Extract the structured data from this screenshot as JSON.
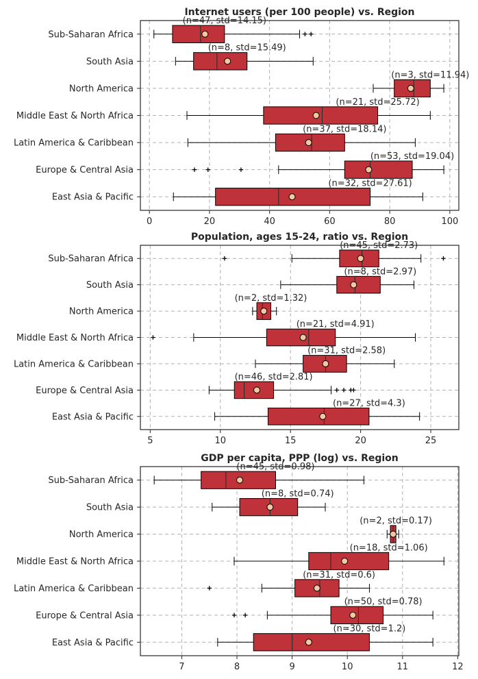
{
  "chart_data": [
    {
      "type": "box",
      "orientation": "horizontal",
      "title": "Internet users (per 100 people) vs. Region",
      "xlim": [
        -3,
        103
      ],
      "xticks": [
        0,
        20,
        40,
        60,
        80,
        100
      ],
      "tick_labels": [
        "0",
        "20",
        "40",
        "60",
        "80",
        "100"
      ],
      "grid": true,
      "colors": {
        "box": "#c0323a",
        "mean_marker": "#f2c8a0",
        "edge": "#000000",
        "grid": "#b0b0b0"
      },
      "categories": [
        "Sub-Saharan Africa",
        "South Asia",
        "North America",
        "Middle East & North Africa",
        "Latin America & Caribbean",
        "Europe & Central Asia",
        "East Asia & Pacific"
      ],
      "boxes": [
        {
          "category": "Sub-Saharan Africa",
          "whisker_low": 1.5,
          "q1": 7.7,
          "median": 17.0,
          "q3": 25.0,
          "whisker_high": 50.0,
          "mean": 18.5,
          "outliers": [
            51.8,
            53.8
          ],
          "annotation": "(n=47, std=14.15)"
        },
        {
          "category": "South Asia",
          "whisker_low": 8.7,
          "q1": 14.7,
          "median": 22.5,
          "q3": 32.5,
          "whisker_high": 54.5,
          "mean": 26.0,
          "outliers": [],
          "annotation": "(n=8, std=15.49)"
        },
        {
          "category": "North America",
          "whisker_low": 74.5,
          "q1": 81.5,
          "median": 88.0,
          "q3": 93.5,
          "whisker_high": 98.0,
          "mean": 87.0,
          "outliers": [],
          "annotation": "(n=3, std=11.94)"
        },
        {
          "category": "Middle East & North Africa",
          "whisker_low": 12.5,
          "q1": 38.0,
          "median": 57.5,
          "q3": 76.0,
          "whisker_high": 93.5,
          "mean": 55.5,
          "outliers": [],
          "annotation": "(n=21, std=25.72)"
        },
        {
          "category": "Latin America & Caribbean",
          "whisker_low": 12.8,
          "q1": 42.0,
          "median": 54.0,
          "q3": 65.0,
          "whisker_high": 88.5,
          "mean": 53.0,
          "outliers": [],
          "annotation": "(n=37, std=18.14)"
        },
        {
          "category": "Europe & Central Asia",
          "whisker_low": 43.0,
          "q1": 65.0,
          "median": 73.5,
          "q3": 87.5,
          "whisker_high": 98.0,
          "mean": 73.0,
          "outliers": [
            15.0,
            19.5,
            30.5
          ],
          "annotation": "(n=53, std=19.04)"
        },
        {
          "category": "East Asia & Pacific",
          "whisker_low": 8.0,
          "q1": 22.0,
          "median": 43.0,
          "q3": 73.5,
          "whisker_high": 91.0,
          "mean": 47.5,
          "outliers": [],
          "annotation": "(n=32, std=27.61)"
        }
      ]
    },
    {
      "type": "box",
      "orientation": "horizontal",
      "title": "Population, ages 15-24, ratio vs. Region",
      "xlim": [
        4.3,
        27
      ],
      "xticks": [
        5,
        10,
        15,
        20,
        25
      ],
      "tick_labels": [
        "5",
        "10",
        "15",
        "20",
        "25"
      ],
      "grid": true,
      "colors": {
        "box": "#c0323a",
        "mean_marker": "#f2c8a0",
        "edge": "#000000",
        "grid": "#b0b0b0"
      },
      "categories": [
        "Sub-Saharan Africa",
        "South Asia",
        "North America",
        "Middle East & North Africa",
        "Latin America & Caribbean",
        "Europe & Central Asia",
        "East Asia & Pacific"
      ],
      "boxes": [
        {
          "category": "Sub-Saharan Africa",
          "whisker_low": 15.1,
          "q1": 18.5,
          "median": 20.1,
          "q3": 21.3,
          "whisker_high": 24.3,
          "mean": 20.0,
          "outliers": [
            10.3,
            25.9
          ],
          "annotation": "(n=45, std=2.73)"
        },
        {
          "category": "South Asia",
          "whisker_low": 14.3,
          "q1": 18.3,
          "median": 19.6,
          "q3": 21.4,
          "whisker_high": 23.8,
          "mean": 19.5,
          "outliers": [],
          "annotation": "(n=8, std=2.97)"
        },
        {
          "category": "North America",
          "whisker_low": 12.3,
          "q1": 12.6,
          "median": 13.0,
          "q3": 13.6,
          "whisker_high": 14.0,
          "mean": 13.1,
          "outliers": [],
          "annotation": "(n=2, std=1.32)"
        },
        {
          "category": "Middle East & North Africa",
          "whisker_low": 8.1,
          "q1": 13.3,
          "median": 16.3,
          "q3": 18.2,
          "whisker_high": 23.9,
          "mean": 15.9,
          "outliers": [
            5.2
          ],
          "annotation": "(n=21, std=4.91)"
        },
        {
          "category": "Latin America & Caribbean",
          "whisker_low": 12.5,
          "q1": 15.9,
          "median": 17.5,
          "q3": 19.0,
          "whisker_high": 22.4,
          "mean": 17.5,
          "outliers": [],
          "annotation": "(n=31, std=2.58)"
        },
        {
          "category": "Europe & Central Asia",
          "whisker_low": 9.2,
          "q1": 11.0,
          "median": 11.7,
          "q3": 13.8,
          "whisker_high": 17.9,
          "mean": 12.6,
          "outliers": [
            18.3,
            18.8,
            19.3,
            19.5
          ],
          "annotation": "(n=46, std=2.81)"
        },
        {
          "category": "East Asia & Pacific",
          "whisker_low": 9.6,
          "q1": 13.4,
          "median": 17.4,
          "q3": 20.6,
          "whisker_high": 24.2,
          "mean": 17.3,
          "outliers": [],
          "annotation": "(n=27, std=4.3)"
        }
      ]
    },
    {
      "type": "box",
      "orientation": "horizontal",
      "title": "GDP per capita, PPP (log) vs. Region",
      "xlim": [
        6.25,
        12.02
      ],
      "xticks": [
        7,
        8,
        9,
        10,
        11,
        12
      ],
      "tick_labels": [
        "7",
        "8",
        "9",
        "10",
        "11",
        "12"
      ],
      "grid": true,
      "colors": {
        "box": "#c0323a",
        "mean_marker": "#f2c8a0",
        "edge": "#000000",
        "grid": "#b0b0b0"
      },
      "categories": [
        "Sub-Saharan Africa",
        "South Asia",
        "North America",
        "Middle East & North Africa",
        "Latin America & Caribbean",
        "Europe & Central Asia",
        "East Asia & Pacific"
      ],
      "boxes": [
        {
          "category": "Sub-Saharan Africa",
          "whisker_low": 6.5,
          "q1": 7.35,
          "median": 7.8,
          "q3": 8.7,
          "whisker_high": 10.3,
          "mean": 8.05,
          "outliers": [],
          "annotation": "(n=45, std=0.98)"
        },
        {
          "category": "South Asia",
          "whisker_low": 7.55,
          "q1": 8.05,
          "median": 8.6,
          "q3": 9.1,
          "whisker_high": 9.6,
          "mean": 8.6,
          "outliers": [],
          "annotation": "(n=8, std=0.74)"
        },
        {
          "category": "North America",
          "whisker_low": 10.72,
          "q1": 10.78,
          "median": 10.83,
          "q3": 10.88,
          "whisker_high": 10.93,
          "mean": 10.83,
          "outliers": [],
          "annotation": "(n=2, std=0.17)"
        },
        {
          "category": "Middle East & North Africa",
          "whisker_low": 7.95,
          "q1": 9.3,
          "median": 9.7,
          "q3": 10.75,
          "whisker_high": 11.75,
          "mean": 9.95,
          "outliers": [],
          "annotation": "(n=18, std=1.06)"
        },
        {
          "category": "Latin America & Caribbean",
          "whisker_low": 8.45,
          "q1": 9.05,
          "median": 9.5,
          "q3": 9.85,
          "whisker_high": 10.4,
          "mean": 9.45,
          "outliers": [
            7.5
          ],
          "annotation": "(n=31, std=0.6)"
        },
        {
          "category": "Europe & Central Asia",
          "whisker_low": 8.55,
          "q1": 9.7,
          "median": 10.2,
          "q3": 10.65,
          "whisker_high": 11.55,
          "mean": 10.1,
          "outliers": [
            7.95,
            8.15
          ],
          "annotation": "(n=50, std=0.78)"
        },
        {
          "category": "East Asia & Pacific",
          "whisker_low": 7.65,
          "q1": 8.3,
          "median": 9.0,
          "q3": 10.4,
          "whisker_high": 11.55,
          "mean": 9.3,
          "outliers": [],
          "annotation": "(n=30, std=1.2)"
        }
      ]
    }
  ]
}
